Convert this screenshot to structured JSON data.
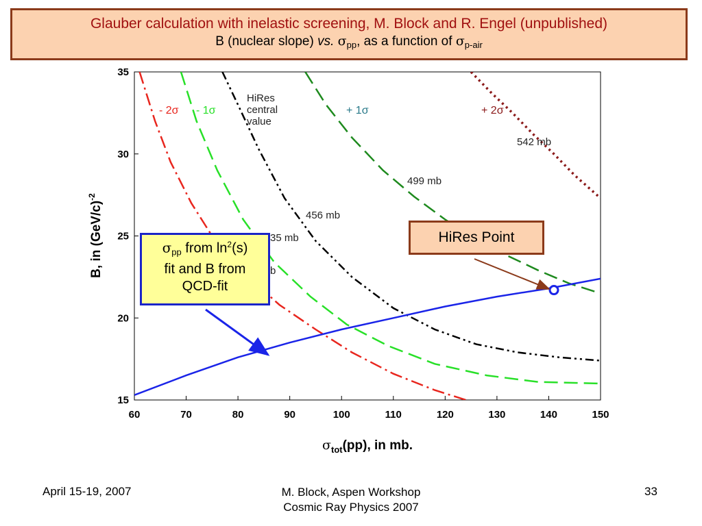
{
  "title": {
    "line1": "Glauber calculation with inelastic screening, M. Block and R. Engel (unpublished)",
    "line2_prefix": "B (nuclear slope) ",
    "line2_vs": "vs.",
    "line2_sigma": "σ",
    "line2_sub1": "pp",
    "line2_mid": ", as a function of ",
    "line2_sigma2": "σ",
    "line2_sub2": "p-air"
  },
  "callouts": {
    "hires_point": "HiRes Point",
    "fit_sigma": "σ",
    "fit_sub": "pp",
    "fit_text1": " from ln",
    "fit_sup": "2",
    "fit_text2": "(s)",
    "fit_line2": "fit and B from",
    "fit_line3": "QCD-fit"
  },
  "footer": {
    "date": "April 15-19, 2007",
    "center_line1": "M. Block, Aspen Workshop",
    "center_line2": "Cosmic Ray Physics 2007",
    "page": "33"
  },
  "chart_data": {
    "type": "line",
    "xlabel_sigma": "σ",
    "xlabel_sub": "tot",
    "xlabel_rest": "(pp), in mb.",
    "ylabel": "B, in (GeV/c)",
    "ylabel_sup": "-2",
    "xlim": [
      60,
      150
    ],
    "ylim": [
      15,
      35
    ],
    "xticks": [
      60,
      70,
      80,
      90,
      100,
      110,
      120,
      130,
      140,
      150
    ],
    "yticks": [
      15,
      20,
      25,
      30,
      35
    ],
    "series": [
      {
        "name": "- 2σ",
        "label": "",
        "color": "#e8261e",
        "dash": "dashdot",
        "points": [
          [
            61,
            35
          ],
          [
            64,
            32
          ],
          [
            67,
            29.5
          ],
          [
            71,
            27
          ],
          [
            76,
            24.5
          ],
          [
            82,
            22.5
          ],
          [
            88,
            20.8
          ],
          [
            95,
            19.3
          ],
          [
            102,
            17.9
          ],
          [
            110,
            16.6
          ],
          [
            118,
            15.6
          ],
          [
            124,
            15
          ]
        ]
      },
      {
        "name": "- 1σ",
        "label": "",
        "color": "#28e028",
        "dash": "dash",
        "points": [
          [
            69,
            35
          ],
          [
            72,
            32
          ],
          [
            76,
            29
          ],
          [
            81,
            26
          ],
          [
            87,
            23.4
          ],
          [
            94,
            21.3
          ],
          [
            101,
            19.6
          ],
          [
            109,
            18.3
          ],
          [
            118,
            17.2
          ],
          [
            128,
            16.5
          ],
          [
            138,
            16.1
          ],
          [
            150,
            16
          ]
        ]
      },
      {
        "name": "HiRes central value",
        "label": "456 mb",
        "color": "#000000",
        "dash": "dashdotdot",
        "points": [
          [
            77,
            35
          ],
          [
            80,
            33
          ],
          [
            84,
            30.3
          ],
          [
            89,
            27.3
          ],
          [
            95,
            24.7
          ],
          [
            102,
            22.5
          ],
          [
            110,
            20.6
          ],
          [
            118,
            19.3
          ],
          [
            126,
            18.4
          ],
          [
            134,
            17.9
          ],
          [
            142,
            17.6
          ],
          [
            150,
            17.4
          ]
        ]
      },
      {
        "name": "+ 1σ",
        "label": "499 mb",
        "color": "#1e8a1e",
        "dash": "dash",
        "points": [
          [
            93,
            35
          ],
          [
            97,
            33
          ],
          [
            102,
            31
          ],
          [
            108,
            29
          ],
          [
            114,
            27.4
          ],
          [
            120,
            26
          ],
          [
            126,
            24.8
          ],
          [
            132,
            23.8
          ],
          [
            138,
            22.9
          ],
          [
            144,
            22.1
          ],
          [
            150,
            21.5
          ]
        ]
      },
      {
        "name": "+ 2σ",
        "label": "542 mb",
        "color": "#8b1a1a",
        "dash": "dot",
        "points": [
          [
            125,
            35
          ],
          [
            129,
            33.7
          ],
          [
            133,
            32.5
          ],
          [
            137,
            31.2
          ],
          [
            141,
            30
          ],
          [
            145,
            28.7
          ],
          [
            150,
            27.3
          ]
        ]
      },
      {
        "name": "fit",
        "label": "",
        "color": "#1a24e8",
        "dash": "solid",
        "points": [
          [
            60,
            15.3
          ],
          [
            70,
            16.5
          ],
          [
            80,
            17.6
          ],
          [
            90,
            18.5
          ],
          [
            100,
            19.3
          ],
          [
            110,
            20.0
          ],
          [
            120,
            20.7
          ],
          [
            130,
            21.3
          ],
          [
            140,
            21.8
          ],
          [
            150,
            22.4
          ]
        ]
      }
    ],
    "partial_labels": [
      {
        "text": "35 mb"
      },
      {
        "text": "b"
      }
    ],
    "hires_point": {
      "x": 141,
      "y": 21.7,
      "color": "#1a24e8"
    }
  }
}
